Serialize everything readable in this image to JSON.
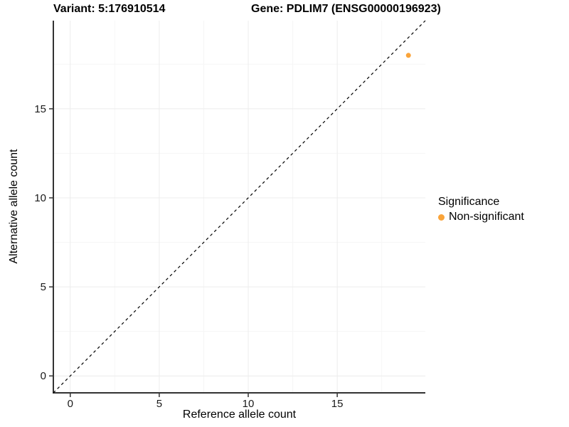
{
  "titles": {
    "variant": "Variant: 5:176910514",
    "gene": "Gene: PDLIM7 (ENSG00000196923)"
  },
  "chart_data": {
    "type": "scatter",
    "title_left": "Variant: 5:176910514",
    "title_right": "Gene: PDLIM7 (ENSG00000196923)",
    "xlabel": "Reference allele count",
    "ylabel": "Alternative allele count",
    "xlim": [
      -0.95,
      19.95
    ],
    "ylim": [
      -0.95,
      19.95
    ],
    "xticks": [
      0,
      5,
      10,
      15
    ],
    "yticks": [
      0,
      5,
      10,
      15
    ],
    "minor_ticks": [
      2.5,
      7.5,
      12.5,
      17.5
    ],
    "grid": true,
    "reference_line": {
      "kind": "identity",
      "slope": 1,
      "intercept": 0,
      "style": "dashed",
      "color": "#000000"
    },
    "series": [
      {
        "name": "Non-significant",
        "color": "#FAA43A",
        "points": [
          {
            "x": 19,
            "y": 18
          }
        ]
      }
    ],
    "legend": {
      "title": "Significance",
      "position": "right",
      "items": [
        {
          "label": "Non-significant",
          "color": "#FAA43A"
        }
      ]
    }
  }
}
